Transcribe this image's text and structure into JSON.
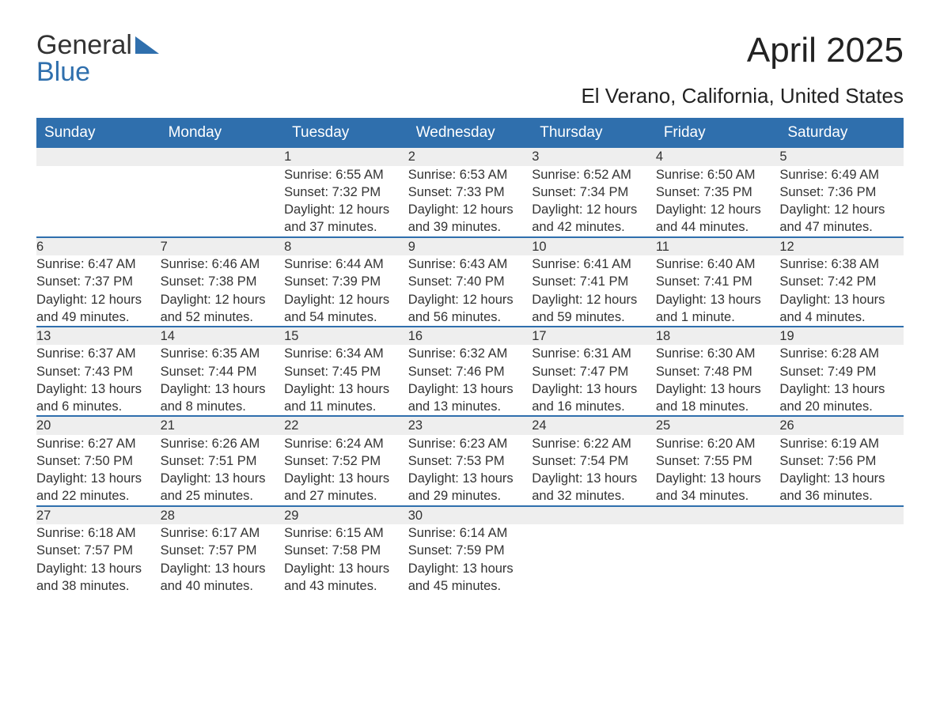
{
  "logo": {
    "text_a": "General",
    "text_b": "Blue"
  },
  "title": "April 2025",
  "subtitle": "El Verano, California, United States",
  "colors": {
    "header_bg": "#2f6fad",
    "header_text": "#ffffff",
    "daynum_bg": "#eeeeee",
    "rule": "#2f6fad",
    "body_text": "#333333",
    "page_bg": "#ffffff"
  },
  "weekdays": [
    "Sunday",
    "Monday",
    "Tuesday",
    "Wednesday",
    "Thursday",
    "Friday",
    "Saturday"
  ],
  "weeks": [
    [
      null,
      null,
      {
        "n": "1",
        "sunrise": "Sunrise: 6:55 AM",
        "sunset": "Sunset: 7:32 PM",
        "d1": "Daylight: 12 hours",
        "d2": "and 37 minutes."
      },
      {
        "n": "2",
        "sunrise": "Sunrise: 6:53 AM",
        "sunset": "Sunset: 7:33 PM",
        "d1": "Daylight: 12 hours",
        "d2": "and 39 minutes."
      },
      {
        "n": "3",
        "sunrise": "Sunrise: 6:52 AM",
        "sunset": "Sunset: 7:34 PM",
        "d1": "Daylight: 12 hours",
        "d2": "and 42 minutes."
      },
      {
        "n": "4",
        "sunrise": "Sunrise: 6:50 AM",
        "sunset": "Sunset: 7:35 PM",
        "d1": "Daylight: 12 hours",
        "d2": "and 44 minutes."
      },
      {
        "n": "5",
        "sunrise": "Sunrise: 6:49 AM",
        "sunset": "Sunset: 7:36 PM",
        "d1": "Daylight: 12 hours",
        "d2": "and 47 minutes."
      }
    ],
    [
      {
        "n": "6",
        "sunrise": "Sunrise: 6:47 AM",
        "sunset": "Sunset: 7:37 PM",
        "d1": "Daylight: 12 hours",
        "d2": "and 49 minutes."
      },
      {
        "n": "7",
        "sunrise": "Sunrise: 6:46 AM",
        "sunset": "Sunset: 7:38 PM",
        "d1": "Daylight: 12 hours",
        "d2": "and 52 minutes."
      },
      {
        "n": "8",
        "sunrise": "Sunrise: 6:44 AM",
        "sunset": "Sunset: 7:39 PM",
        "d1": "Daylight: 12 hours",
        "d2": "and 54 minutes."
      },
      {
        "n": "9",
        "sunrise": "Sunrise: 6:43 AM",
        "sunset": "Sunset: 7:40 PM",
        "d1": "Daylight: 12 hours",
        "d2": "and 56 minutes."
      },
      {
        "n": "10",
        "sunrise": "Sunrise: 6:41 AM",
        "sunset": "Sunset: 7:41 PM",
        "d1": "Daylight: 12 hours",
        "d2": "and 59 minutes."
      },
      {
        "n": "11",
        "sunrise": "Sunrise: 6:40 AM",
        "sunset": "Sunset: 7:41 PM",
        "d1": "Daylight: 13 hours",
        "d2": "and 1 minute."
      },
      {
        "n": "12",
        "sunrise": "Sunrise: 6:38 AM",
        "sunset": "Sunset: 7:42 PM",
        "d1": "Daylight: 13 hours",
        "d2": "and 4 minutes."
      }
    ],
    [
      {
        "n": "13",
        "sunrise": "Sunrise: 6:37 AM",
        "sunset": "Sunset: 7:43 PM",
        "d1": "Daylight: 13 hours",
        "d2": "and 6 minutes."
      },
      {
        "n": "14",
        "sunrise": "Sunrise: 6:35 AM",
        "sunset": "Sunset: 7:44 PM",
        "d1": "Daylight: 13 hours",
        "d2": "and 8 minutes."
      },
      {
        "n": "15",
        "sunrise": "Sunrise: 6:34 AM",
        "sunset": "Sunset: 7:45 PM",
        "d1": "Daylight: 13 hours",
        "d2": "and 11 minutes."
      },
      {
        "n": "16",
        "sunrise": "Sunrise: 6:32 AM",
        "sunset": "Sunset: 7:46 PM",
        "d1": "Daylight: 13 hours",
        "d2": "and 13 minutes."
      },
      {
        "n": "17",
        "sunrise": "Sunrise: 6:31 AM",
        "sunset": "Sunset: 7:47 PM",
        "d1": "Daylight: 13 hours",
        "d2": "and 16 minutes."
      },
      {
        "n": "18",
        "sunrise": "Sunrise: 6:30 AM",
        "sunset": "Sunset: 7:48 PM",
        "d1": "Daylight: 13 hours",
        "d2": "and 18 minutes."
      },
      {
        "n": "19",
        "sunrise": "Sunrise: 6:28 AM",
        "sunset": "Sunset: 7:49 PM",
        "d1": "Daylight: 13 hours",
        "d2": "and 20 minutes."
      }
    ],
    [
      {
        "n": "20",
        "sunrise": "Sunrise: 6:27 AM",
        "sunset": "Sunset: 7:50 PM",
        "d1": "Daylight: 13 hours",
        "d2": "and 22 minutes."
      },
      {
        "n": "21",
        "sunrise": "Sunrise: 6:26 AM",
        "sunset": "Sunset: 7:51 PM",
        "d1": "Daylight: 13 hours",
        "d2": "and 25 minutes."
      },
      {
        "n": "22",
        "sunrise": "Sunrise: 6:24 AM",
        "sunset": "Sunset: 7:52 PM",
        "d1": "Daylight: 13 hours",
        "d2": "and 27 minutes."
      },
      {
        "n": "23",
        "sunrise": "Sunrise: 6:23 AM",
        "sunset": "Sunset: 7:53 PM",
        "d1": "Daylight: 13 hours",
        "d2": "and 29 minutes."
      },
      {
        "n": "24",
        "sunrise": "Sunrise: 6:22 AM",
        "sunset": "Sunset: 7:54 PM",
        "d1": "Daylight: 13 hours",
        "d2": "and 32 minutes."
      },
      {
        "n": "25",
        "sunrise": "Sunrise: 6:20 AM",
        "sunset": "Sunset: 7:55 PM",
        "d1": "Daylight: 13 hours",
        "d2": "and 34 minutes."
      },
      {
        "n": "26",
        "sunrise": "Sunrise: 6:19 AM",
        "sunset": "Sunset: 7:56 PM",
        "d1": "Daylight: 13 hours",
        "d2": "and 36 minutes."
      }
    ],
    [
      {
        "n": "27",
        "sunrise": "Sunrise: 6:18 AM",
        "sunset": "Sunset: 7:57 PM",
        "d1": "Daylight: 13 hours",
        "d2": "and 38 minutes."
      },
      {
        "n": "28",
        "sunrise": "Sunrise: 6:17 AM",
        "sunset": "Sunset: 7:57 PM",
        "d1": "Daylight: 13 hours",
        "d2": "and 40 minutes."
      },
      {
        "n": "29",
        "sunrise": "Sunrise: 6:15 AM",
        "sunset": "Sunset: 7:58 PM",
        "d1": "Daylight: 13 hours",
        "d2": "and 43 minutes."
      },
      {
        "n": "30",
        "sunrise": "Sunrise: 6:14 AM",
        "sunset": "Sunset: 7:59 PM",
        "d1": "Daylight: 13 hours",
        "d2": "and 45 minutes."
      },
      null,
      null,
      null
    ]
  ]
}
